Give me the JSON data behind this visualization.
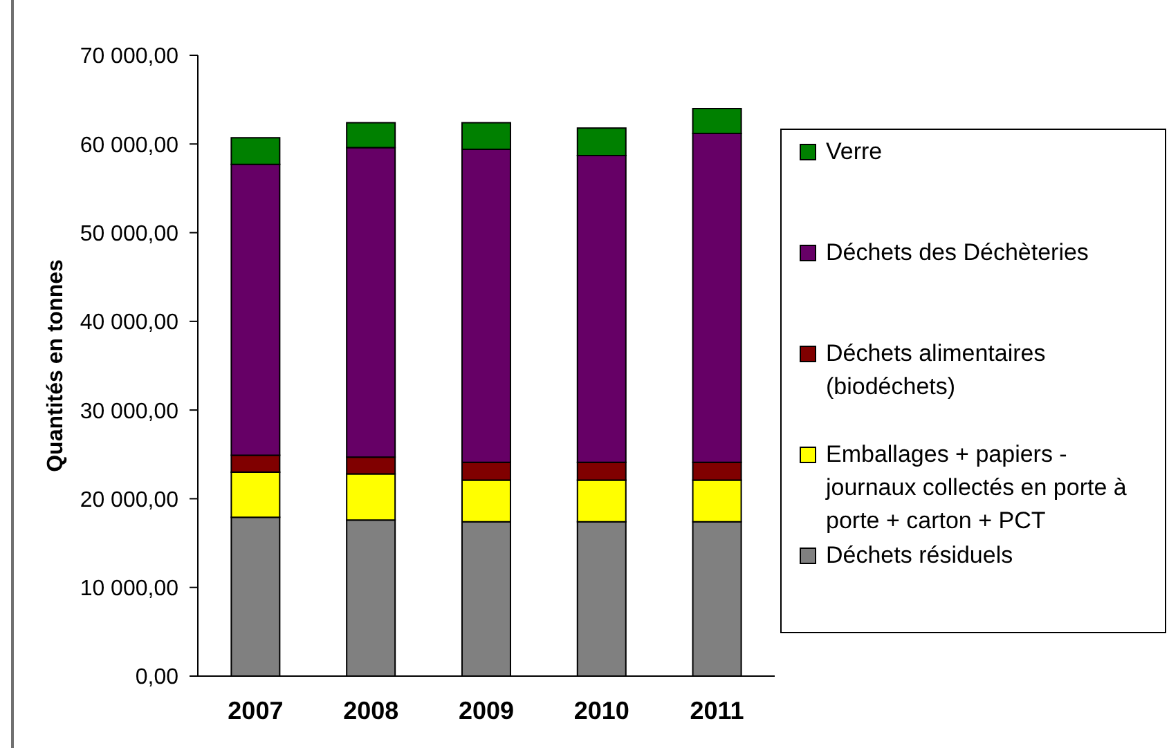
{
  "chart_data": {
    "type": "bar",
    "stacked": true,
    "categories": [
      "2007",
      "2008",
      "2009",
      "2010",
      "2011"
    ],
    "ylabel": "Quantités en tonnes",
    "ylim": [
      0,
      70000
    ],
    "yticks": [
      {
        "value": 0,
        "label": "0,00"
      },
      {
        "value": 10000,
        "label": "10 000,00"
      },
      {
        "value": 20000,
        "label": "20 000,00"
      },
      {
        "value": 30000,
        "label": "30 000,00"
      },
      {
        "value": 40000,
        "label": "40 000,00"
      },
      {
        "value": 50000,
        "label": "50 000,00"
      },
      {
        "value": 60000,
        "label": "60 000,00"
      },
      {
        "value": 70000,
        "label": "70 000,00"
      }
    ],
    "legend": "right",
    "series": [
      {
        "name": "Déchets résiduels",
        "color": "#808080",
        "values": [
          17900,
          17600,
          17400,
          17400,
          17400
        ]
      },
      {
        "name": "Emballages + papiers - journaux collectés en porte à porte + carton + PCT",
        "color": "#ffff00",
        "values": [
          5100,
          5200,
          4700,
          4700,
          4700
        ]
      },
      {
        "name": "Déchets alimentaires (biodéchets)",
        "color": "#800000",
        "values": [
          1900,
          1900,
          2000,
          2000,
          2000
        ]
      },
      {
        "name": "Déchets des Déchèteries",
        "color": "#660066",
        "values": [
          32800,
          34900,
          35300,
          34600,
          37100
        ]
      },
      {
        "name": "Verre",
        "color": "#008000",
        "values": [
          3000,
          2800,
          3000,
          3100,
          2800
        ]
      }
    ]
  }
}
